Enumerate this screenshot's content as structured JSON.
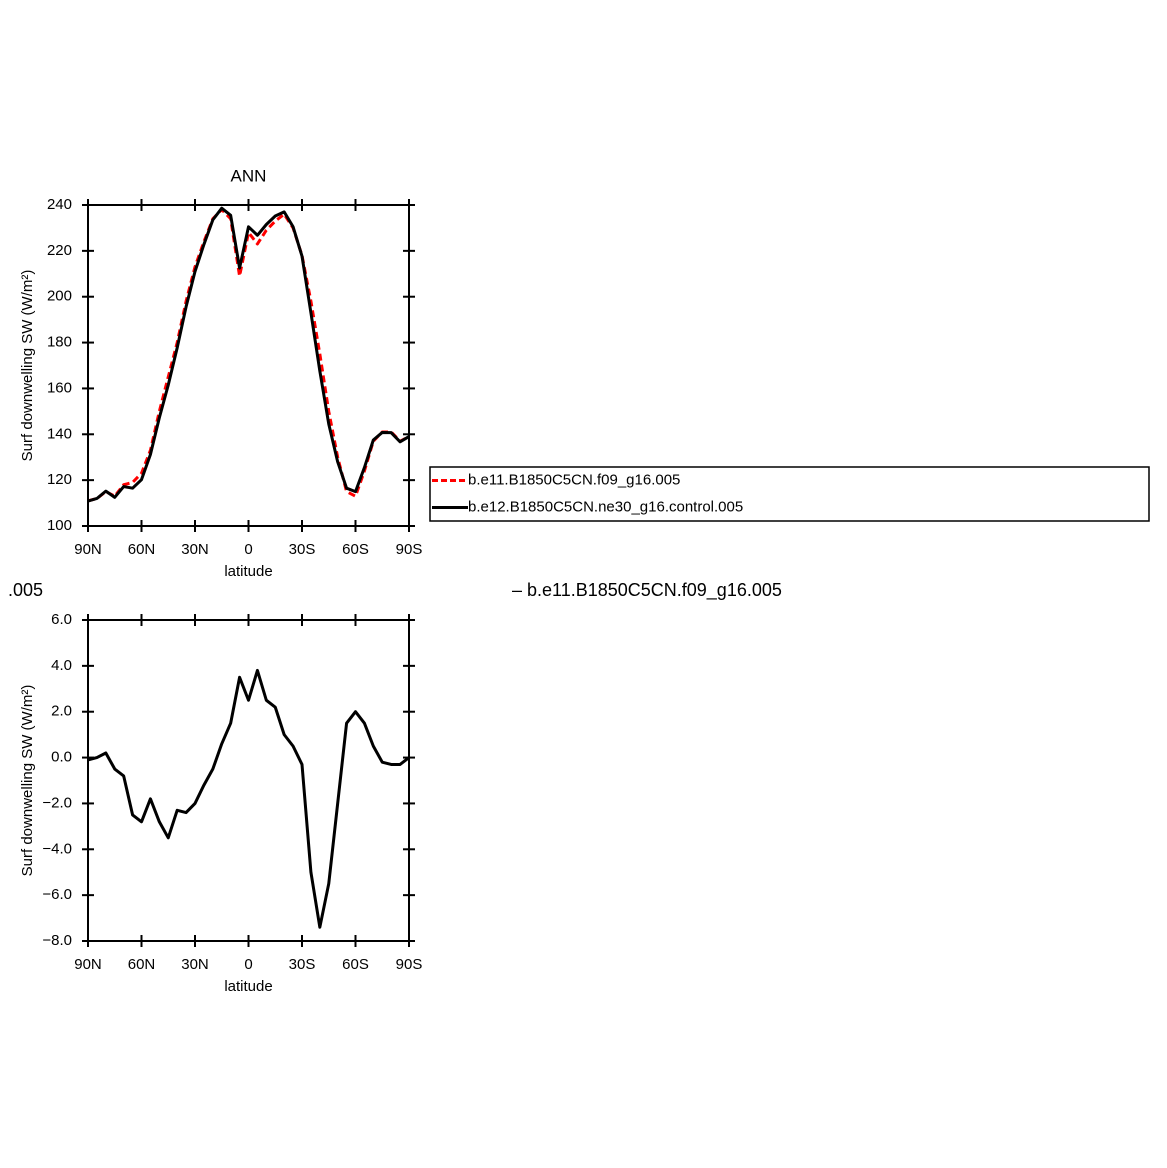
{
  "chart_data": [
    {
      "type": "line",
      "title": "ANN",
      "x_label": "latitude",
      "y_label": "Surf downwelling SW (W/m²)",
      "x": [
        90,
        85,
        80,
        75,
        70,
        65,
        60,
        55,
        50,
        45,
        40,
        35,
        30,
        25,
        20,
        15,
        10,
        5,
        0,
        -5,
        -10,
        -15,
        -20,
        -25,
        -30,
        -35,
        -40,
        -45,
        -50,
        -55,
        -60,
        -65,
        -70,
        -75,
        -80,
        -85,
        -90
      ],
      "xlim": [
        90,
        -90
      ],
      "xticks": [
        {
          "value": 90,
          "label": "90N"
        },
        {
          "value": 60,
          "label": "60N"
        },
        {
          "value": 30,
          "label": "30N"
        },
        0,
        {
          "value": -30,
          "label": "30S"
        },
        {
          "value": -60,
          "label": "60S"
        },
        {
          "value": -90,
          "label": "90S"
        }
      ],
      "ylim": [
        100,
        240
      ],
      "yticks": [
        100,
        120,
        140,
        160,
        180,
        200,
        220,
        240
      ],
      "series": [
        {
          "name": "b.e11.B1850C5CN.f09_g16.005",
          "color": "#ff0000",
          "line_style": "dashed",
          "values": [
            111,
            112,
            115,
            113,
            118,
            119,
            123,
            133,
            150,
            165,
            180,
            198,
            213,
            224,
            234,
            238,
            234,
            209,
            228,
            223,
            229,
            233,
            236,
            230,
            218,
            198,
            175,
            150,
            130,
            115,
            113,
            124,
            137,
            141,
            141,
            137,
            139
          ]
        },
        {
          "name": "b.e12.B1850C5CN.ne30_g16.control.005",
          "color": "#000000",
          "line_style": "solid",
          "values": [
            110.9,
            112,
            115.2,
            112.5,
            117.2,
            116.5,
            120.2,
            131.2,
            147.2,
            161.5,
            177.7,
            195.6,
            211,
            222.8,
            233.5,
            238.6,
            235.5,
            212.5,
            230.5,
            226.8,
            231.5,
            235.2,
            237,
            230.5,
            217.7,
            193,
            167.6,
            144.5,
            128,
            116.5,
            115,
            125.5,
            137.5,
            140.8,
            140.7,
            136.7,
            139
          ]
        }
      ]
    },
    {
      "type": "line",
      "x_label": "latitude",
      "y_label": "Surf downwelling SW (W/m²)",
      "x": [
        90,
        85,
        80,
        75,
        70,
        65,
        60,
        55,
        50,
        45,
        40,
        35,
        30,
        25,
        20,
        15,
        10,
        5,
        0,
        -5,
        -10,
        -15,
        -20,
        -25,
        -30,
        -35,
        -40,
        -45,
        -50,
        -55,
        -60,
        -65,
        -70,
        -75,
        -80,
        -85,
        -90
      ],
      "xlim": [
        90,
        -90
      ],
      "xticks": [
        {
          "value": 90,
          "label": "90N"
        },
        {
          "value": 60,
          "label": "60N"
        },
        {
          "value": 30,
          "label": "30N"
        },
        0,
        {
          "value": -30,
          "label": "30S"
        },
        {
          "value": -60,
          "label": "60S"
        },
        {
          "value": -90,
          "label": "90S"
        }
      ],
      "ylim": [
        -8,
        6
      ],
      "yticks": [
        {
          "value": -8,
          "label": "−8.0"
        },
        {
          "value": -6,
          "label": "−6.0"
        },
        {
          "value": -4,
          "label": "−4.0"
        },
        {
          "value": -2,
          "label": "−2.0"
        },
        {
          "value": 0,
          "label": "0.0"
        },
        {
          "value": 2,
          "label": "2.0"
        },
        {
          "value": 4,
          "label": "4.0"
        },
        {
          "value": 6,
          "label": "6.0"
        }
      ],
      "series": [
        {
          "color": "#000000",
          "line_style": "solid",
          "values": [
            -0.1,
            0,
            0.2,
            -0.5,
            -0.8,
            -2.5,
            -2.8,
            -1.8,
            -2.8,
            -3.5,
            -2.3,
            -2.4,
            -2,
            -1.2,
            -0.5,
            0.6,
            1.5,
            3.5,
            2.5,
            3.8,
            2.5,
            2.2,
            1,
            0.5,
            -0.3,
            -5,
            -7.4,
            -5.5,
            -2,
            1.5,
            2,
            1.5,
            0.5,
            -0.2,
            -0.3,
            -0.3,
            0
          ]
        }
      ]
    }
  ],
  "annotations": [
    ".005",
    "– b.e11.B1850C5CN.f09_g16.005"
  ]
}
